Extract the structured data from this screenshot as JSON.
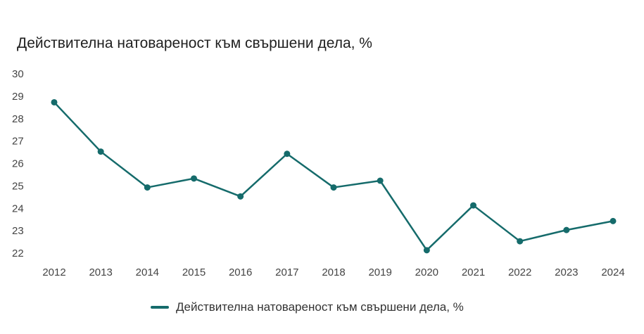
{
  "title": "Действителна натовареност към свършени дела, %",
  "chart_data": {
    "type": "line",
    "title": "Действителна натовареност към свършени дела, %",
    "xlabel": "",
    "ylabel": "",
    "ylim": [
      22,
      30
    ],
    "y_ticks": [
      30,
      29,
      28,
      27,
      26,
      25,
      24,
      23,
      22
    ],
    "grid": false,
    "legend_position": "bottom",
    "x": [
      "2012",
      "2013",
      "2014",
      "2015",
      "2016",
      "2017",
      "2018",
      "2019",
      "2020",
      "2021",
      "2022",
      "2023",
      "2024"
    ],
    "series": [
      {
        "name": "Действителна натовареност към свършени дела, %",
        "color": "#156b6b",
        "values": [
          28.7,
          26.5,
          24.9,
          25.3,
          24.5,
          26.4,
          24.9,
          25.2,
          22.1,
          24.1,
          22.5,
          23.0,
          23.4
        ]
      }
    ]
  }
}
